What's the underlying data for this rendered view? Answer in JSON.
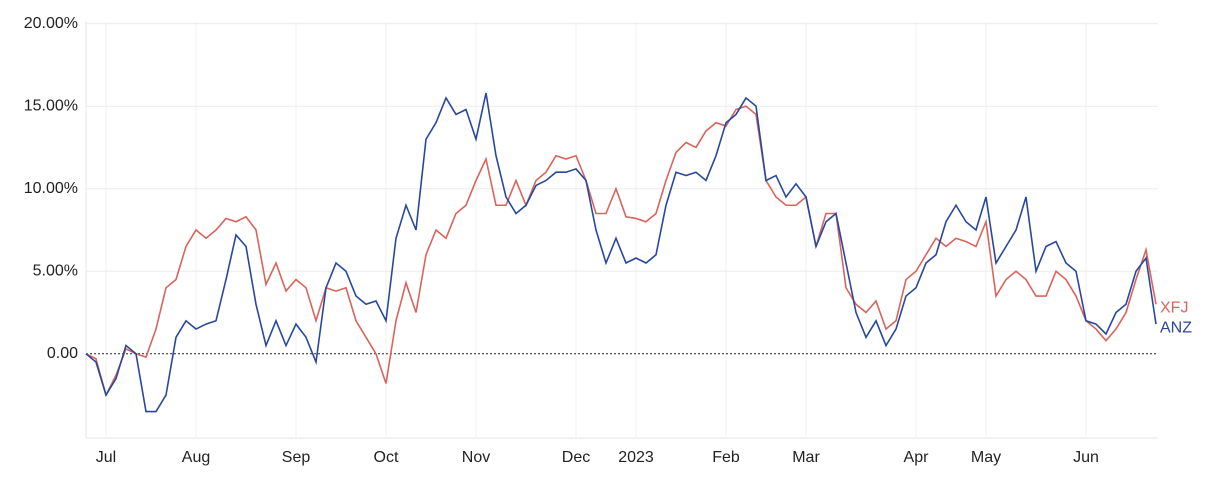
{
  "chart_data": {
    "type": "line",
    "categories": [
      null,
      null,
      "Jul",
      null,
      null,
      null,
      null,
      null,
      null,
      null,
      null,
      "Aug",
      null,
      null,
      null,
      null,
      null,
      null,
      null,
      null,
      null,
      "Sep",
      null,
      null,
      null,
      null,
      null,
      null,
      null,
      null,
      "Oct",
      null,
      null,
      null,
      null,
      null,
      null,
      null,
      null,
      "Nov",
      null,
      null,
      null,
      null,
      null,
      null,
      null,
      null,
      null,
      "Dec",
      null,
      null,
      null,
      null,
      null,
      "2023",
      null,
      null,
      null,
      null,
      null,
      null,
      null,
      null,
      "Feb",
      null,
      null,
      null,
      null,
      null,
      null,
      null,
      "Mar",
      null,
      null,
      null,
      null,
      null,
      null,
      null,
      null,
      null,
      null,
      "Apr",
      null,
      null,
      null,
      null,
      null,
      null,
      "May",
      null,
      null,
      null,
      null,
      null,
      null,
      null,
      null,
      null,
      "Jun",
      null,
      null,
      null,
      null,
      null,
      null,
      null
    ],
    "series": [
      {
        "name": "XFJ",
        "color": "#d9645c",
        "values": [
          0,
          -0.3,
          -2.5,
          -1.3,
          0.3,
          0,
          -0.2,
          1.5,
          4.0,
          4.5,
          6.5,
          7.5,
          7.0,
          7.5,
          8.2,
          8.0,
          8.3,
          7.5,
          4.2,
          5.5,
          3.8,
          4.5,
          4.0,
          2.0,
          4.0,
          3.8,
          4.0,
          2.0,
          1.0,
          0.0,
          -1.8,
          2.0,
          4.3,
          2.5,
          6.0,
          7.5,
          7.0,
          8.5,
          9.0,
          10.5,
          11.8,
          9.0,
          9.0,
          10.5,
          9.0,
          10.5,
          11.0,
          12.0,
          11.8,
          12.0,
          10.5,
          8.5,
          8.5,
          10.0,
          8.3,
          8.2,
          8.0,
          8.5,
          10.5,
          12.2,
          12.8,
          12.5,
          13.5,
          14.0,
          13.8,
          14.8,
          15.0,
          14.5,
          10.5,
          9.5,
          9.0,
          9.0,
          9.5,
          6.5,
          8.5,
          8.5,
          4.0,
          3.0,
          2.5,
          3.2,
          1.5,
          2.0,
          4.5,
          5.0,
          6.0,
          7.0,
          6.5,
          7.0,
          6.8,
          6.5,
          8.0,
          3.5,
          4.5,
          5.0,
          4.5,
          3.5,
          3.5,
          5.0,
          4.5,
          3.5,
          2.0,
          1.5,
          0.8,
          1.5,
          2.5,
          4.5,
          6.3,
          3.0
        ]
      },
      {
        "name": "ANZ",
        "color": "#27489c",
        "values": [
          0,
          -0.5,
          -2.5,
          -1.5,
          0.5,
          0,
          -3.5,
          -3.5,
          -2.5,
          1.0,
          2.0,
          1.5,
          1.8,
          2.0,
          4.5,
          7.2,
          6.5,
          3.0,
          0.5,
          2.0,
          0.5,
          1.8,
          1.0,
          -0.5,
          4.0,
          5.5,
          5.0,
          3.5,
          3.0,
          3.2,
          2.0,
          7.0,
          9.0,
          7.5,
          13.0,
          14.0,
          15.5,
          14.5,
          14.8,
          13.0,
          15.8,
          12.0,
          9.5,
          8.5,
          9.0,
          10.2,
          10.5,
          11.0,
          11.0,
          11.2,
          10.5,
          7.5,
          5.5,
          7.0,
          5.5,
          5.8,
          5.5,
          6.0,
          9.0,
          11.0,
          10.8,
          11.0,
          10.5,
          12.0,
          14.0,
          14.5,
          15.5,
          15.0,
          10.5,
          10.8,
          9.5,
          10.3,
          9.5,
          6.5,
          8.0,
          8.5,
          5.5,
          2.5,
          1.0,
          2.0,
          0.5,
          1.5,
          3.5,
          4.0,
          5.5,
          6.0,
          8.0,
          9.0,
          8.0,
          7.5,
          9.5,
          5.5,
          6.5,
          7.5,
          9.5,
          5.0,
          6.5,
          6.8,
          5.5,
          5.0,
          2.0,
          1.8,
          1.2,
          2.5,
          3.0,
          5.0,
          5.8,
          1.8
        ]
      }
    ],
    "ylim": [
      -5.1,
      20.1
    ],
    "yticks": [
      {
        "value": 0,
        "label": "0.00"
      },
      {
        "value": 5,
        "label": "5.00%"
      },
      {
        "value": 10,
        "label": "10.00%"
      },
      {
        "value": 15,
        "label": "15.00%"
      },
      {
        "value": 20,
        "label": "20.00%"
      }
    ],
    "grid": true
  }
}
